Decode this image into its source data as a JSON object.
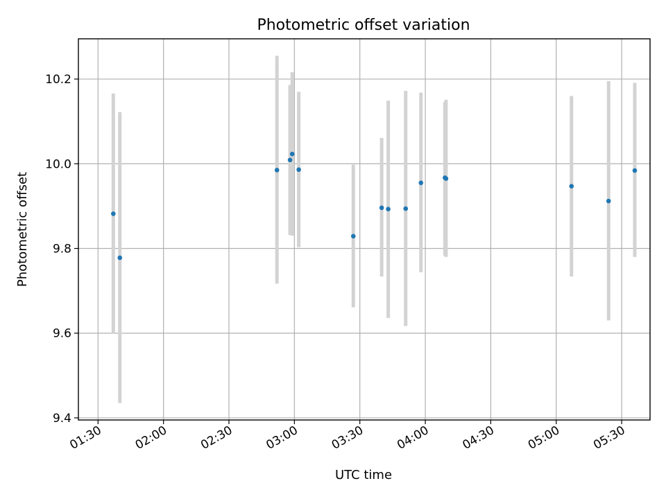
{
  "chart_data": {
    "type": "scatter",
    "title": "Photometric offset variation",
    "xlabel": "UTC time",
    "ylabel": "Photometric offset",
    "xlim": [
      "01:21",
      "05:43"
    ],
    "ylim": [
      9.395,
      10.295
    ],
    "x_ticks": [
      "01:30",
      "02:00",
      "02:30",
      "03:00",
      "03:30",
      "04:00",
      "04:30",
      "05:00",
      "05:30"
    ],
    "y_ticks": [
      9.4,
      9.6,
      9.8,
      10.0,
      10.2
    ],
    "y_tick_labels": [
      "9.4",
      "9.6",
      "9.8",
      "10.0",
      "10.2"
    ],
    "grid": true,
    "series": [
      {
        "marker_color": "#1f77b4",
        "errorbar_color": "#d3d3d3",
        "points": [
          {
            "time": "01:37",
            "y": 9.882,
            "ylow": 9.6,
            "yhigh": 10.166
          },
          {
            "time": "01:40",
            "y": 9.778,
            "ylow": 9.435,
            "yhigh": 10.122
          },
          {
            "time": "02:52",
            "y": 9.985,
            "ylow": 9.717,
            "yhigh": 10.255
          },
          {
            "time": "02:58",
            "y": 10.009,
            "ylow": 9.832,
            "yhigh": 10.186
          },
          {
            "time": "02:59",
            "y": 10.023,
            "ylow": 9.83,
            "yhigh": 10.216
          },
          {
            "time": "03:02",
            "y": 9.986,
            "ylow": 9.803,
            "yhigh": 10.17
          },
          {
            "time": "03:27",
            "y": 9.829,
            "ylow": 9.661,
            "yhigh": 9.998
          },
          {
            "time": "03:40",
            "y": 9.896,
            "ylow": 9.734,
            "yhigh": 10.061
          },
          {
            "time": "03:43",
            "y": 9.893,
            "ylow": 9.636,
            "yhigh": 10.149
          },
          {
            "time": "03:51",
            "y": 9.894,
            "ylow": 9.617,
            "yhigh": 10.172
          },
          {
            "time": "03:58",
            "y": 9.955,
            "ylow": 9.744,
            "yhigh": 10.168
          },
          {
            "time": "04:09",
            "y": 9.967,
            "ylow": 9.783,
            "yhigh": 10.146
          },
          {
            "time": "04:09:30",
            "y": 9.965,
            "ylow": 9.78,
            "yhigh": 10.151
          },
          {
            "time": "05:07",
            "y": 9.947,
            "ylow": 9.734,
            "yhigh": 10.16
          },
          {
            "time": "05:24",
            "y": 9.912,
            "ylow": 9.63,
            "yhigh": 10.195
          },
          {
            "time": "05:36",
            "y": 9.984,
            "ylow": 9.78,
            "yhigh": 10.191
          }
        ]
      }
    ]
  }
}
